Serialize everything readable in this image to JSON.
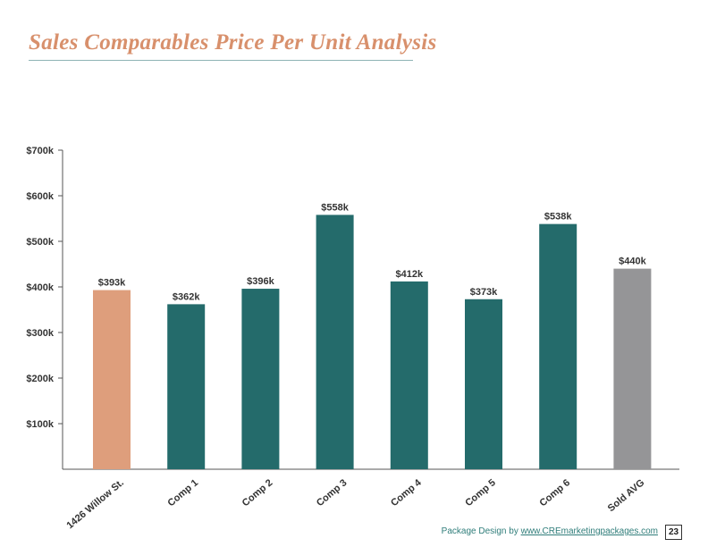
{
  "page": {
    "title": "Sales Comparables Price Per Unit Analysis",
    "footer_prefix": "Package Design by",
    "footer_link": "www.CREmarketingpackages.com",
    "page_number": "23"
  },
  "colors": {
    "title": "#d8906c",
    "subject_bar": "#de9e7c",
    "comp_bar": "#246b6b",
    "avg_bar": "#959597",
    "axis": "#555555"
  },
  "chart_data": {
    "type": "bar",
    "title": "Sales Comparables Price Per Unit Analysis",
    "xlabel": "",
    "ylabel": "",
    "ylim": [
      0,
      700000
    ],
    "yticks": [
      100000,
      200000,
      300000,
      400000,
      500000,
      600000,
      700000
    ],
    "ytick_labels": [
      "$100k",
      "$200k",
      "$300k",
      "$400k",
      "$500k",
      "$600k",
      "$700k"
    ],
    "categories": [
      "1426 Willow St.",
      "Comp 1",
      "Comp 2",
      "Comp 3",
      "Comp 4",
      "Comp 5",
      "Comp 6",
      "Sold AVG"
    ],
    "values": [
      393000,
      362000,
      396000,
      558000,
      412000,
      373000,
      538000,
      440000
    ],
    "data_labels": [
      "$393k",
      "$362k",
      "$396k",
      "$558k",
      "$412k",
      "$373k",
      "$538k",
      "$440k"
    ],
    "bar_colors": [
      "#de9e7c",
      "#246b6b",
      "#246b6b",
      "#246b6b",
      "#246b6b",
      "#246b6b",
      "#246b6b",
      "#959597"
    ],
    "grid": false,
    "legend": "none"
  }
}
